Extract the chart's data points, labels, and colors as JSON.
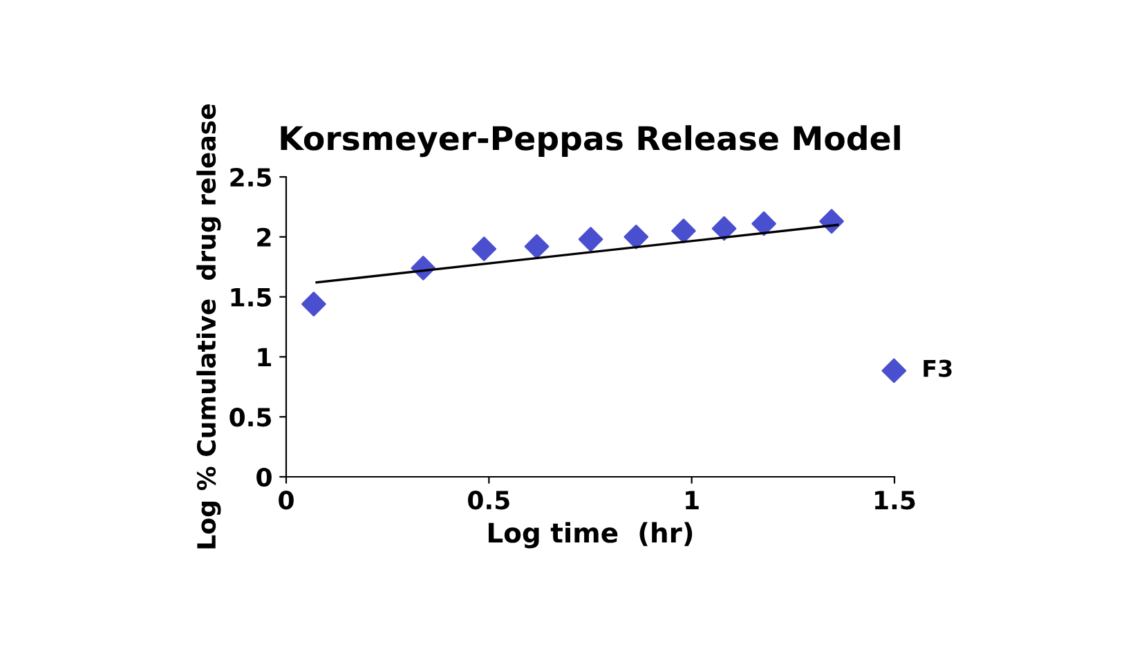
{
  "chart_data": {
    "type": "scatter",
    "title": "Korsmeyer-Peppas Release Model",
    "xlabel": "Log time  (hr)",
    "ylabel": "Log % Cumulative  drug release",
    "xlim": [
      0,
      1.5
    ],
    "xticks": [
      0,
      0.5,
      1,
      1.5
    ],
    "ylim": [
      0,
      2.5
    ],
    "yticks": [
      0,
      0.5,
      1,
      1.5,
      2,
      2.5
    ],
    "grid": false,
    "legend": "right",
    "series": [
      {
        "name": "F3",
        "marker": "diamond",
        "color": "#4a4fd0",
        "x": [
          0.068,
          0.338,
          0.488,
          0.618,
          0.751,
          0.863,
          0.98,
          1.08,
          1.178,
          1.345
        ],
        "values": [
          1.44,
          1.74,
          1.9,
          1.92,
          1.98,
          2.0,
          2.05,
          2.07,
          2.11,
          2.13
        ]
      },
      {
        "type": "line",
        "color": "#000000",
        "x": [
          0.075,
          1.36
        ],
        "values": [
          1.62,
          2.1
        ],
        "line_style": "solid",
        "marker": "none"
      }
    ]
  }
}
